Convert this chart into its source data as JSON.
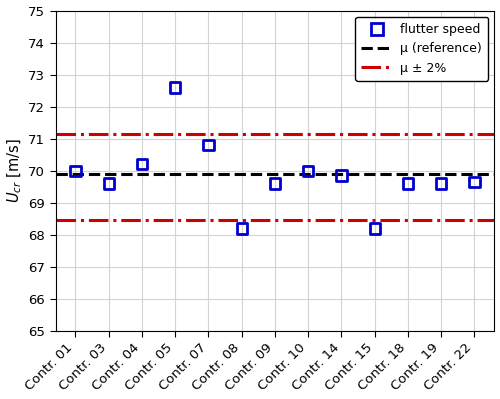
{
  "categories": [
    "Contr. 01",
    "Contr. 03",
    "Contr. 04",
    "Contr. 05",
    "Contr. 07",
    "Contr. 08",
    "Contr. 09",
    "Contr. 10",
    "Contr. 14",
    "Contr. 15",
    "Contr. 18",
    "Contr. 19",
    "Contr. 22"
  ],
  "flutter_speeds": [
    70.0,
    69.6,
    70.2,
    72.6,
    70.8,
    68.2,
    69.6,
    70.0,
    69.85,
    68.2,
    69.6,
    69.6,
    69.65
  ],
  "mu_reference": 69.9,
  "mu_plus_2pct": 71.15,
  "mu_minus_2pct": 68.45,
  "ylim": [
    65,
    75
  ],
  "yticks": [
    65,
    66,
    67,
    68,
    69,
    70,
    71,
    72,
    73,
    74,
    75
  ],
  "ylabel_italic": "$U_{cr}$",
  "ylabel_units": " [m/s]",
  "scatter_color": "#0000cc",
  "scatter_marker": "s",
  "scatter_size": 55,
  "ref_line_color": "#000000",
  "ref_line_style": "--",
  "band_line_color": "#cc0000",
  "band_line_style": "-.",
  "legend_flutter": "flutter speed",
  "legend_mu": "μ (reference)",
  "legend_band": "μ ± 2%",
  "background_color": "#ffffff",
  "plot_bg_color": "#ffffff",
  "grid_color": "#d3d3d3",
  "ref_linewidth": 2.2,
  "band_linewidth": 2.2,
  "tick_fontsize": 9.5,
  "legend_fontsize": 9.0
}
